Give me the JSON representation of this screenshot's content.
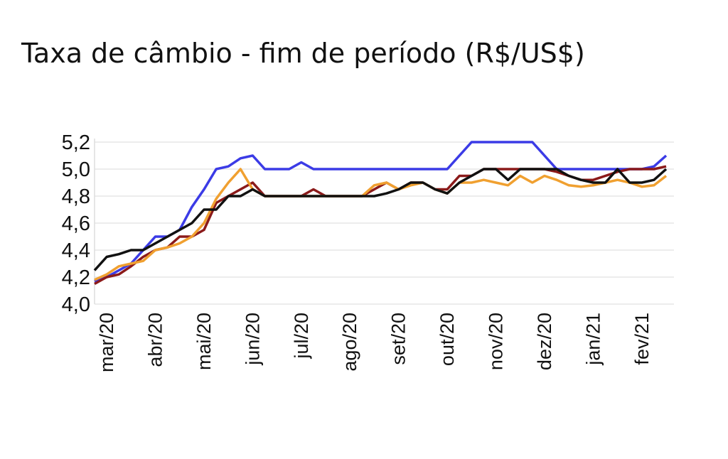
{
  "chart_data": {
    "type": "line",
    "title": "Taxa de câmbio - fim de período (R$/US$)",
    "categories": [
      null,
      "mar/20",
      null,
      null,
      null,
      "abr/20",
      null,
      null,
      null,
      "mai/20",
      null,
      null,
      null,
      "jun/20",
      null,
      null,
      null,
      "jul/20",
      null,
      null,
      null,
      "ago/20",
      null,
      null,
      null,
      "set/20",
      null,
      null,
      null,
      "out/20",
      null,
      null,
      null,
      "nov/20",
      null,
      null,
      null,
      "dez/20",
      null,
      null,
      null,
      "jan/21",
      null,
      null,
      null,
      "fev/21",
      null,
      null
    ],
    "series": [
      {
        "color": "#3b3be6",
        "values": [
          4.17,
          4.2,
          4.25,
          4.3,
          4.4,
          4.5,
          4.5,
          4.55,
          4.72,
          4.85,
          5.0,
          5.02,
          5.08,
          5.1,
          5.0,
          5.0,
          5.0,
          5.05,
          5.0,
          5.0,
          5.0,
          5.0,
          5.0,
          5.0,
          5.0,
          5.0,
          5.0,
          5.0,
          5.0,
          5.0,
          5.1,
          5.2,
          5.2,
          5.2,
          5.2,
          5.2,
          5.2,
          5.1,
          5.0,
          5.0,
          5.0,
          5.0,
          5.0,
          5.0,
          5.0,
          5.0,
          5.02,
          5.1
        ]
      },
      {
        "color": "#8b1a1a",
        "values": [
          4.15,
          4.2,
          4.22,
          4.28,
          4.35,
          4.4,
          4.42,
          4.5,
          4.5,
          4.55,
          4.75,
          4.8,
          4.85,
          4.9,
          4.8,
          4.8,
          4.8,
          4.8,
          4.85,
          4.8,
          4.8,
          4.8,
          4.8,
          4.85,
          4.9,
          4.85,
          4.9,
          4.9,
          4.85,
          4.85,
          4.95,
          4.95,
          5.0,
          5.0,
          5.0,
          5.0,
          5.0,
          5.0,
          4.98,
          4.95,
          4.92,
          4.92,
          4.95,
          4.98,
          5.0,
          5.0,
          5.0,
          5.02
        ]
      },
      {
        "color": "#f0a030",
        "values": [
          4.18,
          4.22,
          4.28,
          4.3,
          4.32,
          4.4,
          4.42,
          4.45,
          4.5,
          4.6,
          4.78,
          4.9,
          5.0,
          4.85,
          4.8,
          4.8,
          4.8,
          4.8,
          4.8,
          4.8,
          4.8,
          4.8,
          4.8,
          4.88,
          4.9,
          4.85,
          4.88,
          4.9,
          4.85,
          4.82,
          4.9,
          4.9,
          4.92,
          4.9,
          4.88,
          4.95,
          4.9,
          4.95,
          4.92,
          4.88,
          4.87,
          4.88,
          4.9,
          4.92,
          4.9,
          4.87,
          4.88,
          4.95
        ]
      },
      {
        "color": "#111111",
        "values": [
          4.25,
          4.35,
          4.37,
          4.4,
          4.4,
          4.45,
          4.5,
          4.55,
          4.6,
          4.7,
          4.7,
          4.8,
          4.8,
          4.85,
          4.8,
          4.8,
          4.8,
          4.8,
          4.8,
          4.8,
          4.8,
          4.8,
          4.8,
          4.8,
          4.82,
          4.85,
          4.9,
          4.9,
          4.85,
          4.82,
          4.9,
          4.95,
          5.0,
          5.0,
          4.92,
          5.0,
          5.0,
          5.0,
          5.0,
          4.95,
          4.92,
          4.9,
          4.9,
          5.0,
          4.9,
          4.9,
          4.92,
          5.0
        ]
      }
    ],
    "ylim": [
      4.0,
      5.2
    ],
    "yticks": [
      {
        "value": 4.0,
        "label": "4,0"
      },
      {
        "value": 4.2,
        "label": "4,2"
      },
      {
        "value": 4.4,
        "label": "4,4"
      },
      {
        "value": 4.6,
        "label": "4,6"
      },
      {
        "value": 4.8,
        "label": "4,8"
      },
      {
        "value": 5.0,
        "label": "5,0"
      },
      {
        "value": 5.2,
        "label": "5,2"
      }
    ],
    "grid": true
  }
}
